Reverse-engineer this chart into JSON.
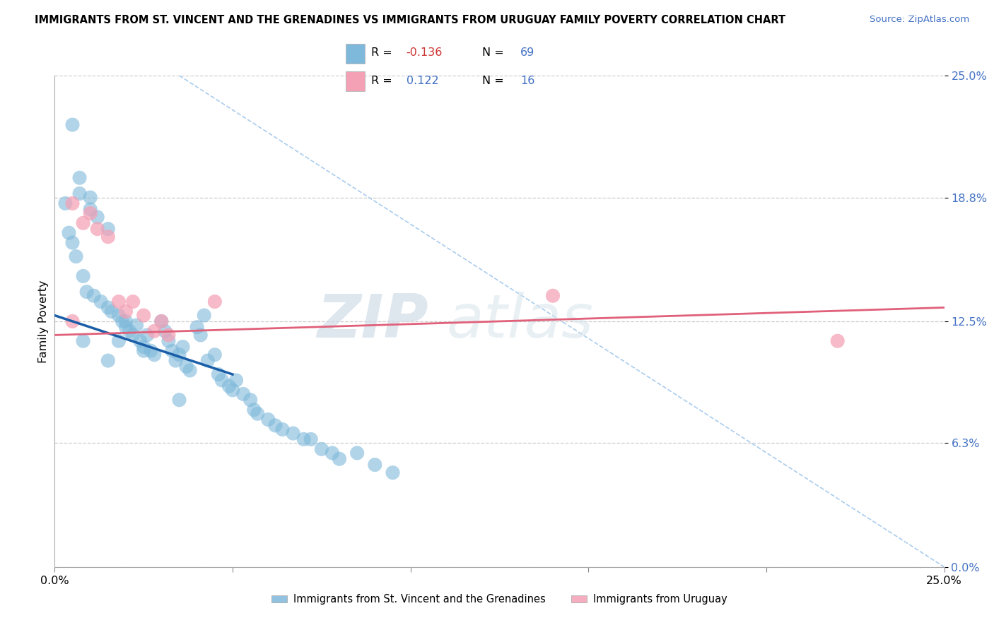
{
  "title": "IMMIGRANTS FROM ST. VINCENT AND THE GRENADINES VS IMMIGRANTS FROM URUGUAY FAMILY POVERTY CORRELATION CHART",
  "source": "Source: ZipAtlas.com",
  "ylabel": "Family Poverty",
  "ytick_values": [
    0.0,
    6.3,
    12.5,
    18.8,
    25.0
  ],
  "xlim": [
    0,
    25
  ],
  "ylim": [
    0,
    25
  ],
  "legend_blue_r": "-0.136",
  "legend_blue_n": "69",
  "legend_pink_r": "0.122",
  "legend_pink_n": "16",
  "legend_blue_label": "Immigrants from St. Vincent and the Grenadines",
  "legend_pink_label": "Immigrants from Uruguay",
  "blue_color": "#7EB8DA",
  "pink_color": "#F4A0B5",
  "blue_line_color": "#1a5ea8",
  "pink_line_color": "#e0607a",
  "watermark_zip": "ZIP",
  "watermark_atlas": "atlas",
  "blue_scatter_x": [
    0.5,
    0.7,
    0.7,
    1.0,
    1.0,
    1.2,
    1.5,
    0.3,
    0.4,
    0.5,
    0.6,
    0.8,
    0.9,
    1.1,
    1.3,
    1.5,
    1.6,
    1.8,
    1.9,
    2.0,
    2.0,
    2.1,
    2.2,
    2.3,
    2.4,
    2.5,
    2.6,
    2.7,
    2.8,
    3.0,
    3.1,
    3.2,
    3.3,
    3.4,
    3.5,
    3.6,
    3.7,
    3.8,
    4.0,
    4.1,
    4.2,
    4.3,
    4.5,
    4.6,
    4.7,
    4.9,
    5.0,
    5.1,
    5.3,
    5.5,
    5.6,
    5.7,
    6.0,
    6.2,
    6.4,
    6.7,
    7.0,
    7.2,
    7.5,
    7.8,
    8.0,
    8.5,
    9.0,
    9.5,
    1.8,
    2.5,
    3.5,
    0.8,
    1.5
  ],
  "blue_scatter_y": [
    22.5,
    19.8,
    19.0,
    18.8,
    18.2,
    17.8,
    17.2,
    18.5,
    17.0,
    16.5,
    15.8,
    14.8,
    14.0,
    13.8,
    13.5,
    13.2,
    13.0,
    12.8,
    12.5,
    12.5,
    12.2,
    12.0,
    11.8,
    12.3,
    11.5,
    11.2,
    11.8,
    11.0,
    10.8,
    12.5,
    12.0,
    11.5,
    11.0,
    10.5,
    10.8,
    11.2,
    10.2,
    10.0,
    12.2,
    11.8,
    12.8,
    10.5,
    10.8,
    9.8,
    9.5,
    9.2,
    9.0,
    9.5,
    8.8,
    8.5,
    8.0,
    7.8,
    7.5,
    7.2,
    7.0,
    6.8,
    6.5,
    6.5,
    6.0,
    5.8,
    5.5,
    5.8,
    5.2,
    4.8,
    11.5,
    11.0,
    8.5,
    11.5,
    10.5
  ],
  "pink_scatter_x": [
    0.5,
    0.8,
    1.0,
    1.2,
    1.5,
    1.8,
    2.0,
    2.2,
    2.5,
    2.8,
    3.0,
    3.2,
    4.5,
    14.0,
    0.5,
    22.0
  ],
  "pink_scatter_y": [
    18.5,
    17.5,
    18.0,
    17.2,
    16.8,
    13.5,
    13.0,
    13.5,
    12.8,
    12.0,
    12.5,
    11.8,
    13.5,
    13.8,
    12.5,
    11.5
  ],
  "blue_line_x": [
    0,
    5.0
  ],
  "blue_line_y": [
    12.8,
    9.8
  ],
  "pink_line_x": [
    0,
    25
  ],
  "pink_line_y": [
    11.8,
    13.2
  ],
  "diag_line_x": [
    3.5,
    25
  ],
  "diag_line_y": [
    25,
    0
  ]
}
